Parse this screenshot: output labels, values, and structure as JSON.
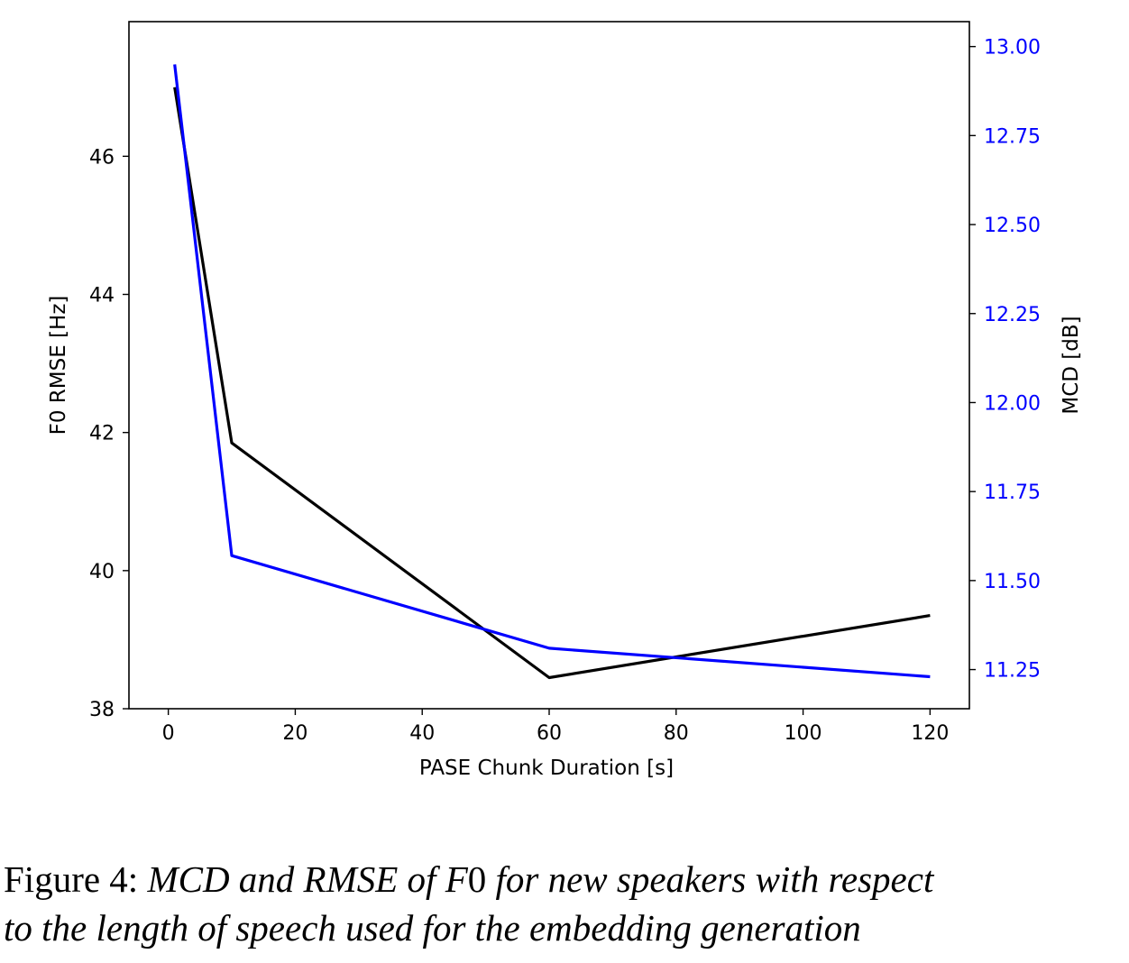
{
  "chart_data": {
    "type": "line",
    "x": [
      1,
      10,
      60,
      120
    ],
    "series": [
      {
        "axis": "left",
        "color": "#000000",
        "values": [
          47.0,
          41.85,
          38.45,
          39.35
        ]
      },
      {
        "axis": "right",
        "color": "#0000ff",
        "values": [
          12.95,
          11.57,
          11.31,
          11.23
        ]
      }
    ],
    "xlabel": "PASE Chunk Duration [s]",
    "ylabel_left": "F0 RMSE [Hz]",
    "ylabel_right": "MCD [dB]",
    "xlim": [
      -6.2,
      126.2
    ],
    "ylim_left": [
      38,
      47.95
    ],
    "ylim_right": [
      11.14,
      13.07
    ],
    "x_ticks": [
      0,
      20,
      40,
      60,
      80,
      100,
      120
    ],
    "x_tick_labels": [
      "0",
      "20",
      "40",
      "60",
      "80",
      "100",
      "120"
    ],
    "y_left_ticks": [
      38,
      40,
      42,
      44,
      46
    ],
    "y_left_tick_labels": [
      "38",
      "40",
      "42",
      "44",
      "46"
    ],
    "y_right_ticks": [
      11.25,
      11.5,
      11.75,
      12.0,
      12.25,
      12.5,
      12.75,
      13.0
    ],
    "y_right_tick_labels": [
      "11.25",
      "11.50",
      "11.75",
      "12.00",
      "12.25",
      "12.50",
      "12.75",
      "13.00"
    ],
    "y_right_color": "#0000ff",
    "grid": false
  },
  "caption": {
    "prefix": "Figure 4: ",
    "part1": "MCD and RMSE of ",
    "symbol": "F",
    "digit": "0",
    "part2": " for new speakers with respect",
    "line2": "to the length of speech used for the embedding generation"
  }
}
